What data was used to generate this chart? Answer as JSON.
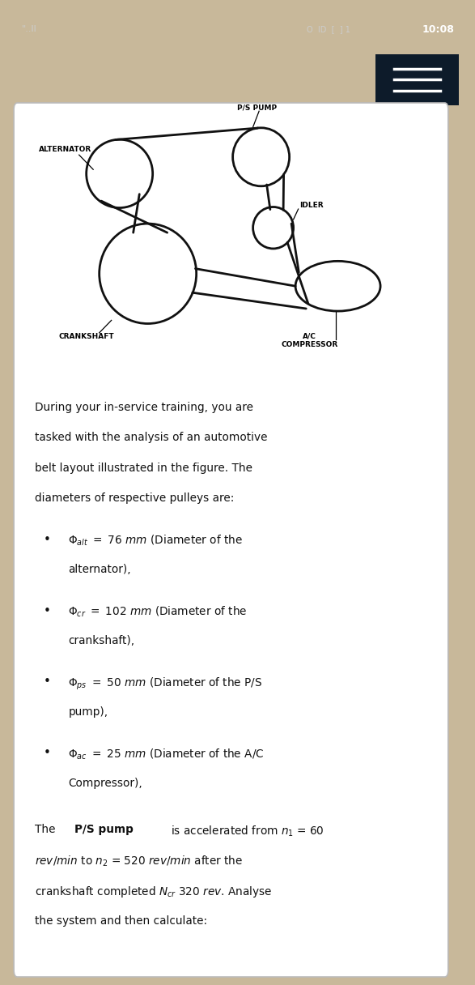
{
  "status_bar_bg": "#3d4450",
  "status_bar_text": "10:08",
  "bg_color": "#c8b89a",
  "card_bg": "#ffffff",
  "card_border": "#bbbbbb",
  "menu_button_bg": "#0d1b2a",
  "belt_color": "#111111",
  "pulley_color": "#111111"
}
